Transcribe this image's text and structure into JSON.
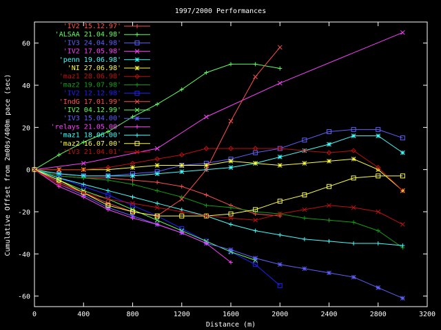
{
  "chart_data": {
    "type": "line",
    "title": "1997/2000 Performances",
    "xlabel": "Distance (m)",
    "ylabel": "Cumulative Offset from 2m00s/400m pace (sec)",
    "xlim": [
      0,
      3200
    ],
    "ylim": [
      -65,
      70
    ],
    "xticks": [
      0,
      400,
      800,
      1200,
      1600,
      2000,
      2400,
      2800,
      3200
    ],
    "yticks": [
      -60,
      -40,
      -20,
      0,
      20,
      40,
      60
    ],
    "grid": false,
    "legend_position": "top-left",
    "series": [
      {
        "name": "'IV2 15.12.97'",
        "color": "#ff5050",
        "marker": "plus",
        "x": [
          0,
          200,
          400,
          600,
          800,
          1000,
          1200,
          1400,
          1600,
          1800,
          2000
        ],
        "y": [
          0,
          -3,
          -4,
          -4,
          -5,
          -6,
          -8,
          -12,
          -17,
          -21,
          -22
        ]
      },
      {
        "name": "'ALSAA 21.04.98'",
        "color": "#60ff60",
        "marker": "plus",
        "x": [
          0,
          200,
          400,
          600,
          800,
          1000,
          1200,
          1400,
          1600,
          1800,
          2000
        ],
        "y": [
          0,
          7,
          13,
          18,
          25,
          31,
          38,
          46,
          50,
          50,
          48
        ]
      },
      {
        "name": "'IV3 24.04.98'",
        "color": "#6060ff",
        "marker": "square",
        "x": [
          0,
          200,
          400,
          600,
          800,
          1000,
          1200,
          1400,
          1600,
          1800,
          2000,
          2200,
          2400,
          2600,
          2800,
          3000
        ],
        "y": [
          0,
          -2,
          -3,
          -3,
          -2,
          -1,
          2,
          3,
          5,
          8,
          10,
          14,
          18,
          19,
          19,
          15
        ]
      },
      {
        "name": "'IV2 17.05.98'",
        "color": "#ff40ff",
        "marker": "x",
        "x": [
          0,
          400,
          1000,
          1400,
          2000,
          3000
        ],
        "y": [
          0,
          3,
          10,
          25,
          41,
          65
        ]
      },
      {
        "name": "'penn 19.06.98'",
        "color": "#40ffff",
        "marker": "star",
        "x": [
          0,
          200,
          400,
          600,
          800,
          1000,
          1200,
          1400,
          1600,
          1800,
          2000,
          2200,
          2400,
          2600,
          2800,
          3000
        ],
        "y": [
          0,
          -2,
          -3,
          -3,
          -3,
          -2,
          -1,
          0,
          1,
          3,
          6,
          9,
          12,
          16,
          16,
          8
        ]
      },
      {
        "name": "'NI 27.06.98'",
        "color": "#ffff40",
        "marker": "star",
        "x": [
          0,
          200,
          400,
          600,
          800,
          1000,
          1200,
          1400,
          1600,
          1800,
          2000,
          2200,
          2400,
          2600,
          2800,
          3000
        ],
        "y": [
          0,
          0,
          0,
          0,
          1,
          2,
          2,
          2,
          4,
          3,
          2,
          3,
          4,
          5,
          0,
          -10
        ]
      },
      {
        "name": "'maz1 28.06.98'",
        "color": "#c01010",
        "marker": "diamond",
        "x": [
          0,
          200,
          400,
          600,
          800,
          1000,
          1200,
          1400,
          1600,
          1800,
          2000,
          2200,
          2400,
          2600,
          2800,
          3000
        ],
        "y": [
          0,
          0,
          0,
          1,
          3,
          5,
          7,
          10,
          10,
          10,
          10,
          9,
          8,
          9,
          1,
          -10
        ]
      },
      {
        "name": "'maz2 19.07.98'",
        "color": "#10a010",
        "marker": "plus",
        "x": [
          0,
          200,
          400,
          600,
          800,
          1000,
          1200,
          1400,
          1600,
          1800,
          2000,
          2200,
          2400,
          2600,
          2800,
          3000
        ],
        "y": [
          0,
          -3,
          -4,
          -5,
          -7,
          -10,
          -13,
          -17,
          -18,
          -20,
          -21,
          -23,
          -24,
          -25,
          -29,
          -37
        ]
      },
      {
        "name": "'IV2 12.12.98'",
        "color": "#2020ff",
        "marker": "square",
        "x": [
          0,
          200,
          400,
          600,
          800,
          1000,
          1200,
          1400,
          1600,
          1800,
          2000
        ],
        "y": [
          0,
          -4,
          -8,
          -12,
          -17,
          -22,
          -28,
          -34,
          -39,
          -45,
          -55
        ]
      },
      {
        "name": "'IndG 17.01.99'",
        "color": "#ff5050",
        "marker": "x",
        "x": [
          0,
          200,
          400,
          600,
          800,
          1000,
          1200,
          1400,
          1600,
          1800,
          2000
        ],
        "y": [
          0,
          -6,
          -11,
          -16,
          -20,
          -22,
          -14,
          0,
          23,
          44,
          58
        ]
      },
      {
        "name": "'IV2 04.12.99'",
        "color": "#60ff60",
        "marker": "x",
        "x": [
          0,
          200,
          400,
          600,
          800,
          1000,
          1200,
          1400,
          1600,
          1800
        ],
        "y": [
          0,
          -5,
          -10,
          -14,
          -19,
          -24,
          -29,
          -34,
          -39,
          -43
        ]
      },
      {
        "name": "'IV3 15.04.00'",
        "color": "#6060ff",
        "marker": "star",
        "x": [
          0,
          200,
          400,
          600,
          800,
          1000,
          1200,
          1400,
          1600,
          1800,
          2000,
          2200,
          2400,
          2600,
          2800,
          3000
        ],
        "y": [
          0,
          -7,
          -12,
          -18,
          -22,
          -26,
          -30,
          -35,
          -38,
          -42,
          -45,
          -47,
          -49,
          -51,
          -56,
          -61
        ]
      },
      {
        "name": "'relays 21.05.00'",
        "color": "#ff40ff",
        "marker": "plus",
        "x": [
          0,
          200,
          400,
          600,
          800,
          1000,
          1200,
          1400,
          1600
        ],
        "y": [
          0,
          -8,
          -13,
          -19,
          -23,
          -26,
          -30,
          -35,
          -44
        ]
      },
      {
        "name": "'maz1 18.06.00'",
        "color": "#40ffff",
        "marker": "plus",
        "x": [
          0,
          200,
          400,
          600,
          800,
          1000,
          1200,
          1400,
          1600,
          1800,
          2000,
          2200,
          2400,
          2600,
          2800,
          3000
        ],
        "y": [
          0,
          -4,
          -7,
          -10,
          -13,
          -16,
          -19,
          -22,
          -26,
          -29,
          -31,
          -33,
          -34,
          -35,
          -35,
          -36
        ]
      },
      {
        "name": "'maz2 16.07.00'",
        "color": "#ffff40",
        "marker": "square",
        "x": [
          0,
          200,
          400,
          600,
          800,
          1000,
          1200,
          1400,
          1600,
          1800,
          2000,
          2200,
          2400,
          2600,
          2800,
          3000
        ],
        "y": [
          0,
          -5,
          -11,
          -17,
          -20,
          -22,
          -22,
          -22,
          -21,
          -19,
          -15,
          -12,
          -8,
          -4,
          -3,
          -3
        ]
      },
      {
        "name": "'IV3 21.04.01'",
        "color": "#c01010",
        "marker": "x",
        "x": [
          0,
          200,
          400,
          600,
          800,
          1000,
          1200,
          1400,
          1600,
          1800,
          2000,
          2200,
          2400,
          2600,
          2800,
          3000
        ],
        "y": [
          0,
          -7,
          -11,
          -14,
          -16,
          -18,
          -20,
          -22,
          -23,
          -24,
          -21,
          -19,
          -17,
          -18,
          -20,
          -26
        ]
      }
    ]
  }
}
